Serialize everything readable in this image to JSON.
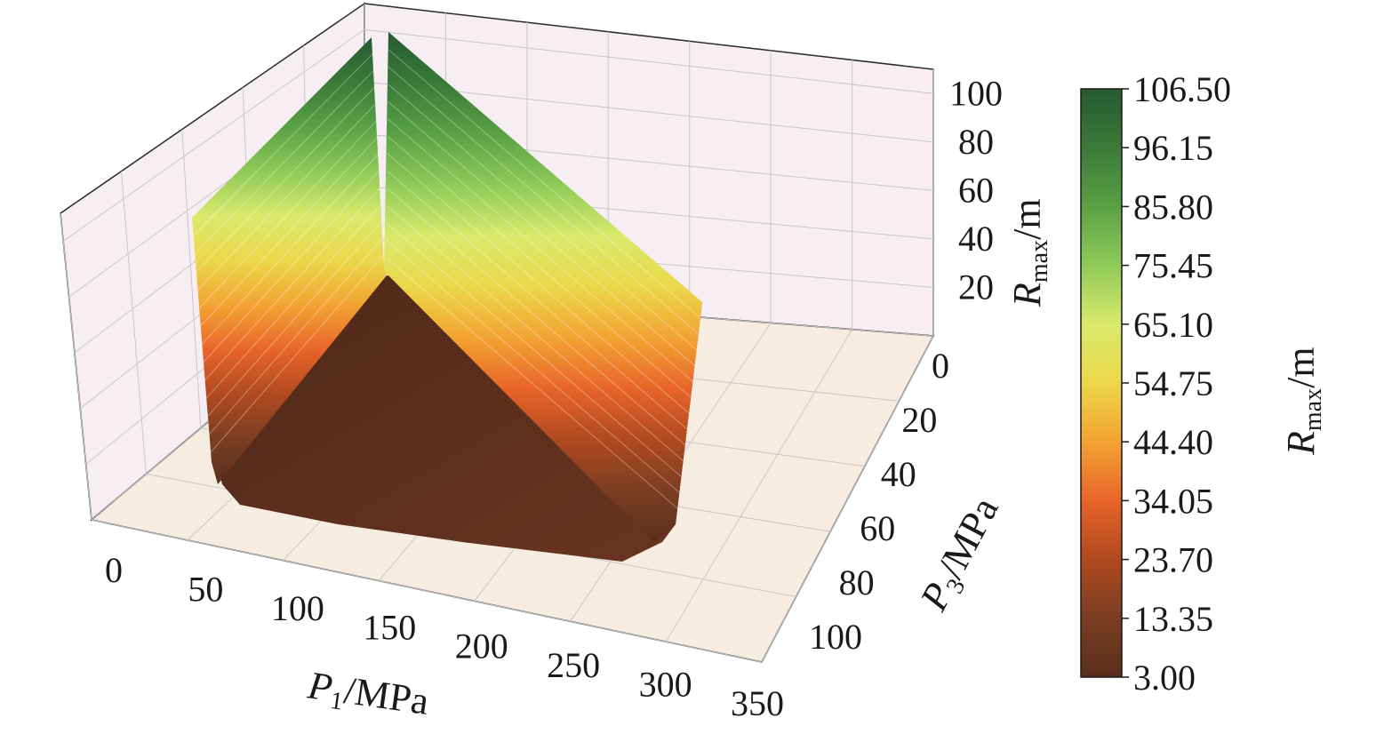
{
  "chart_data": {
    "type": "surface3d",
    "title": "",
    "x_axis": {
      "label": {
        "var": "P",
        "sub": "1",
        "unit": "/MPa"
      },
      "range": [
        0,
        350
      ],
      "ticks": [
        "0",
        "50",
        "100",
        "150",
        "200",
        "250",
        "300",
        "350"
      ]
    },
    "y_axis": {
      "label": {
        "var": "P",
        "sub": "3",
        "unit": "/MPa"
      },
      "range": [
        0,
        100
      ],
      "ticks": [
        "0",
        "20",
        "40",
        "60",
        "80",
        "100"
      ]
    },
    "z_axis": {
      "label": {
        "var": "R",
        "sub": "max",
        "unit": "/m"
      },
      "range": [
        0,
        110
      ],
      "ticks": [
        "20",
        "40",
        "60",
        "80",
        "100"
      ]
    },
    "colorbar": {
      "label": {
        "var": "R",
        "sub": "max",
        "unit": "/m"
      },
      "min": 3.0,
      "max": 106.5,
      "ticks": [
        "106.50",
        "96.15",
        "85.80",
        "75.45",
        "65.10",
        "54.75",
        "44.40",
        "34.05",
        "23.70",
        "13.35",
        "3.00"
      ],
      "colors": [
        "#5a2e1c",
        "#7a3e22",
        "#b0491f",
        "#e8642a",
        "#f3a332",
        "#ecd74a",
        "#d9ea6c",
        "#8fca58",
        "#5aa145",
        "#3a7a38",
        "#265a32"
      ]
    },
    "surface": {
      "boundary": [
        {
          "p1": 40,
          "p3": 0,
          "r": 5
        },
        {
          "p1": 200,
          "p3": 0,
          "r": 5
        },
        {
          "p1": 310,
          "p3": 40,
          "r": 5
        },
        {
          "p1": 325,
          "p3": 95,
          "r": 5
        },
        {
          "p1": 130,
          "p3": 100,
          "r": 5
        }
      ],
      "peak_edge_a": [
        {
          "p1": 40,
          "p3": 0,
          "r": 78
        },
        {
          "p1": 200,
          "p3": 0,
          "r": 106.5
        }
      ],
      "peak_edge_b": [
        {
          "p1": 200,
          "p3": 0,
          "r": 106.5
        },
        {
          "p1": 325,
          "p3": 95,
          "r": 80
        }
      ]
    },
    "grid": true
  }
}
